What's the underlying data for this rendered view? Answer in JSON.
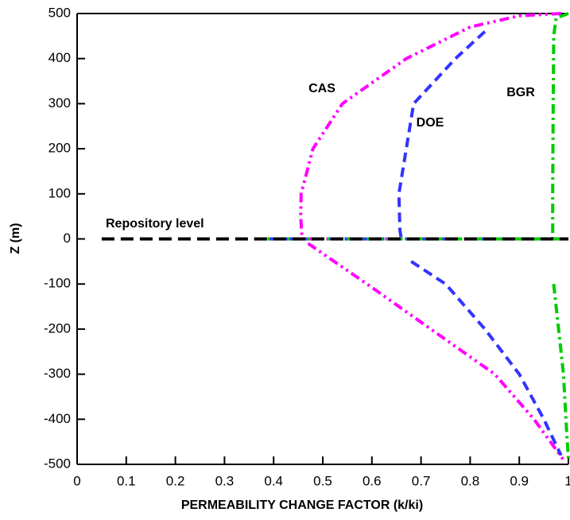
{
  "chart_data": {
    "type": "line",
    "xlabel": "PERMEABILITY CHANGE FACTOR (k/ki)",
    "ylabel": "Z (m)",
    "xlim": [
      0,
      1
    ],
    "ylim": [
      -500,
      500
    ],
    "xticks": [
      0,
      0.1,
      0.2,
      0.3,
      0.4,
      0.5,
      0.6,
      0.7,
      0.8,
      0.9,
      1
    ],
    "yticks": [
      -500,
      -400,
      -300,
      -200,
      -100,
      0,
      100,
      200,
      300,
      400,
      500
    ],
    "series": [
      {
        "name": "CAS",
        "color": "#ff00ff",
        "x": [
          0.985,
          0.9,
          0.8,
          0.67,
          0.54,
          0.48,
          0.456,
          0.455,
          0.458,
          null,
          0.47,
          0.59,
          0.72,
          0.85,
          0.93,
          0.99,
          null,
          0.36,
          1
        ],
        "values": [
          500,
          495,
          470,
          400,
          300,
          200,
          100,
          50,
          0,
          null,
          -10,
          -100,
          -200,
          -300,
          -400,
          -490,
          null,
          0,
          0
        ]
      },
      {
        "name": "DOE",
        "color": "#3333ff",
        "x": [
          0.83,
          0.77,
          0.685,
          0.67,
          0.655,
          0.657,
          0.66,
          null,
          0.68,
          0.75,
          0.83,
          0.9,
          0.95,
          0.985,
          null,
          0.36,
          1
        ],
        "values": [
          460,
          400,
          300,
          200,
          100,
          20,
          0,
          null,
          -50,
          -100,
          -200,
          -300,
          -400,
          -480,
          null,
          0,
          0
        ]
      },
      {
        "name": "BGR",
        "color": "#00cc00",
        "x": [
          1,
          0.975,
          0.97,
          0.969,
          0.968,
          0.968,
          null,
          0.97,
          0.98,
          0.99,
          0.995,
          1,
          null,
          0.36,
          1
        ],
        "values": [
          500,
          490,
          450,
          300,
          100,
          0,
          null,
          -100,
          -200,
          -300,
          -400,
          -490,
          null,
          0,
          0
        ]
      },
      {
        "name": "Repository level",
        "color": "#000000",
        "x": [
          0.05,
          1
        ],
        "values": [
          0,
          0
        ]
      }
    ]
  }
}
